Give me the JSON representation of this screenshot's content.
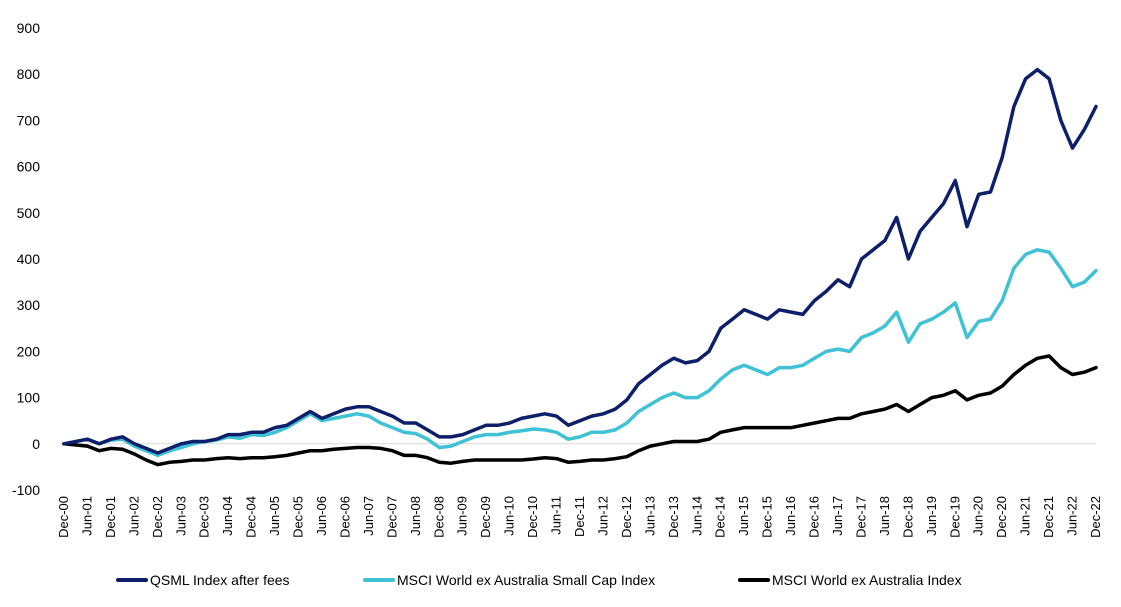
{
  "chart_data": {
    "type": "line",
    "title": "",
    "xlabel": "",
    "ylabel": "",
    "ylim": [
      -100,
      900
    ],
    "yticks": [
      900,
      800,
      700,
      600,
      500,
      400,
      300,
      200,
      100,
      0,
      -100
    ],
    "xticks": [
      "Dec-00",
      "Jun-01",
      "Dec-01",
      "Jun-02",
      "Dec-02",
      "Jun-03",
      "Dec-03",
      "Jun-04",
      "Dec-04",
      "Jun-05",
      "Dec-05",
      "Jun-06",
      "Dec-06",
      "Jun-07",
      "Dec-07",
      "Jun-08",
      "Dec-08",
      "Jun-09",
      "Dec-09",
      "Jun-10",
      "Dec-10",
      "Jun-11",
      "Dec-11",
      "Jun-12",
      "Dec-12",
      "Jun-13",
      "Dec-13",
      "Jun-14",
      "Dec-14",
      "Jun-15",
      "Dec-15",
      "Jun-16",
      "Dec-16",
      "Jun-17",
      "Dec-17",
      "Jun-18",
      "Dec-18",
      "Jun-19",
      "Dec-19",
      "Jun-20",
      "Dec-20",
      "Jun-21",
      "Dec-21",
      "Jun-22",
      "Dec-22"
    ],
    "grid": false,
    "legend_position": "bottom",
    "series": [
      {
        "name": "QSML Index after fees",
        "color": "#0d1f6b",
        "points": [
          [
            "Dec-00",
            0
          ],
          [
            "Jun-01",
            10
          ],
          [
            "Sep-01",
            0
          ],
          [
            "Dec-01",
            10
          ],
          [
            "Mar-02",
            15
          ],
          [
            "Jun-02",
            0
          ],
          [
            "Sep-02",
            -10
          ],
          [
            "Dec-02",
            -20
          ],
          [
            "Mar-03",
            -10
          ],
          [
            "Jun-03",
            0
          ],
          [
            "Sep-03",
            5
          ],
          [
            "Dec-03",
            5
          ],
          [
            "Mar-04",
            10
          ],
          [
            "Jun-04",
            20
          ],
          [
            "Sep-04",
            20
          ],
          [
            "Dec-04",
            25
          ],
          [
            "Mar-05",
            25
          ],
          [
            "Jun-05",
            35
          ],
          [
            "Sep-05",
            40
          ],
          [
            "Dec-05",
            55
          ],
          [
            "Mar-06",
            70
          ],
          [
            "Jun-06",
            55
          ],
          [
            "Sep-06",
            65
          ],
          [
            "Dec-06",
            75
          ],
          [
            "Mar-07",
            80
          ],
          [
            "Jun-07",
            80
          ],
          [
            "Sep-07",
            70
          ],
          [
            "Dec-07",
            60
          ],
          [
            "Mar-08",
            45
          ],
          [
            "Jun-08",
            45
          ],
          [
            "Sep-08",
            30
          ],
          [
            "Dec-08",
            15
          ],
          [
            "Mar-09",
            15
          ],
          [
            "Jun-09",
            20
          ],
          [
            "Sep-09",
            30
          ],
          [
            "Dec-09",
            40
          ],
          [
            "Mar-10",
            40
          ],
          [
            "Jun-10",
            45
          ],
          [
            "Sep-10",
            55
          ],
          [
            "Dec-10",
            60
          ],
          [
            "Mar-11",
            65
          ],
          [
            "Jun-11",
            60
          ],
          [
            "Sep-11",
            40
          ],
          [
            "Dec-11",
            50
          ],
          [
            "Mar-12",
            60
          ],
          [
            "Jun-12",
            65
          ],
          [
            "Sep-12",
            75
          ],
          [
            "Dec-12",
            95
          ],
          [
            "Mar-13",
            130
          ],
          [
            "Jun-13",
            150
          ],
          [
            "Sep-13",
            170
          ],
          [
            "Dec-13",
            185
          ],
          [
            "Mar-14",
            175
          ],
          [
            "Jun-14",
            180
          ],
          [
            "Sep-14",
            200
          ],
          [
            "Dec-14",
            250
          ],
          [
            "Mar-15",
            270
          ],
          [
            "Jun-15",
            290
          ],
          [
            "Sep-15",
            280
          ],
          [
            "Dec-15",
            270
          ],
          [
            "Mar-16",
            290
          ],
          [
            "Jun-16",
            285
          ],
          [
            "Sep-16",
            280
          ],
          [
            "Dec-16",
            310
          ],
          [
            "Mar-17",
            330
          ],
          [
            "Jun-17",
            355
          ],
          [
            "Sep-17",
            340
          ],
          [
            "Dec-17",
            400
          ],
          [
            "Mar-18",
            420
          ],
          [
            "Jun-18",
            440
          ],
          [
            "Sep-18",
            490
          ],
          [
            "Dec-18",
            400
          ],
          [
            "Mar-19",
            460
          ],
          [
            "Jun-19",
            490
          ],
          [
            "Sep-19",
            520
          ],
          [
            "Dec-19",
            570
          ],
          [
            "Mar-20",
            470
          ],
          [
            "Jun-20",
            540
          ],
          [
            "Sep-20",
            545
          ],
          [
            "Dec-20",
            620
          ],
          [
            "Mar-21",
            730
          ],
          [
            "Jun-21",
            790
          ],
          [
            "Sep-21",
            810
          ],
          [
            "Dec-21",
            790
          ],
          [
            "Mar-22",
            700
          ],
          [
            "Jun-22",
            640
          ],
          [
            "Sep-22",
            680
          ],
          [
            "Dec-22",
            730
          ]
        ]
      },
      {
        "name": "MSCI World ex Australia Small Cap Index",
        "color": "#3fc1d6",
        "points": [
          [
            "Dec-00",
            0
          ],
          [
            "Jun-01",
            10
          ],
          [
            "Sep-01",
            0
          ],
          [
            "Dec-01",
            8
          ],
          [
            "Mar-02",
            10
          ],
          [
            "Jun-02",
            -5
          ],
          [
            "Sep-02",
            -15
          ],
          [
            "Dec-02",
            -25
          ],
          [
            "Mar-03",
            -15
          ],
          [
            "Jun-03",
            -8
          ],
          [
            "Sep-03",
            0
          ],
          [
            "Dec-03",
            5
          ],
          [
            "Mar-04",
            8
          ],
          [
            "Jun-04",
            15
          ],
          [
            "Sep-04",
            12
          ],
          [
            "Dec-04",
            20
          ],
          [
            "Mar-05",
            18
          ],
          [
            "Jun-05",
            25
          ],
          [
            "Sep-05",
            35
          ],
          [
            "Dec-05",
            50
          ],
          [
            "Mar-06",
            65
          ],
          [
            "Jun-06",
            50
          ],
          [
            "Sep-06",
            55
          ],
          [
            "Dec-06",
            60
          ],
          [
            "Mar-07",
            65
          ],
          [
            "Jun-07",
            60
          ],
          [
            "Sep-07",
            45
          ],
          [
            "Dec-07",
            35
          ],
          [
            "Mar-08",
            25
          ],
          [
            "Jun-08",
            22
          ],
          [
            "Sep-08",
            10
          ],
          [
            "Dec-08",
            -8
          ],
          [
            "Mar-09",
            -5
          ],
          [
            "Jun-09",
            5
          ],
          [
            "Sep-09",
            15
          ],
          [
            "Dec-09",
            20
          ],
          [
            "Mar-10",
            20
          ],
          [
            "Jun-10",
            25
          ],
          [
            "Sep-10",
            28
          ],
          [
            "Dec-10",
            32
          ],
          [
            "Mar-11",
            30
          ],
          [
            "Jun-11",
            25
          ],
          [
            "Sep-11",
            10
          ],
          [
            "Dec-11",
            15
          ],
          [
            "Mar-12",
            25
          ],
          [
            "Jun-12",
            25
          ],
          [
            "Sep-12",
            30
          ],
          [
            "Dec-12",
            45
          ],
          [
            "Mar-13",
            70
          ],
          [
            "Jun-13",
            85
          ],
          [
            "Sep-13",
            100
          ],
          [
            "Dec-13",
            110
          ],
          [
            "Mar-14",
            100
          ],
          [
            "Jun-14",
            100
          ],
          [
            "Sep-14",
            115
          ],
          [
            "Dec-14",
            140
          ],
          [
            "Mar-15",
            160
          ],
          [
            "Jun-15",
            170
          ],
          [
            "Sep-15",
            160
          ],
          [
            "Dec-15",
            150
          ],
          [
            "Mar-16",
            165
          ],
          [
            "Jun-16",
            165
          ],
          [
            "Sep-16",
            170
          ],
          [
            "Dec-16",
            185
          ],
          [
            "Mar-17",
            200
          ],
          [
            "Jun-17",
            205
          ],
          [
            "Sep-17",
            200
          ],
          [
            "Dec-17",
            230
          ],
          [
            "Mar-18",
            240
          ],
          [
            "Jun-18",
            255
          ],
          [
            "Sep-18",
            285
          ],
          [
            "Dec-18",
            220
          ],
          [
            "Mar-19",
            260
          ],
          [
            "Jun-19",
            270
          ],
          [
            "Sep-19",
            285
          ],
          [
            "Dec-19",
            305
          ],
          [
            "Mar-20",
            230
          ],
          [
            "Jun-20",
            265
          ],
          [
            "Sep-20",
            270
          ],
          [
            "Dec-20",
            310
          ],
          [
            "Mar-21",
            380
          ],
          [
            "Jun-21",
            410
          ],
          [
            "Sep-21",
            420
          ],
          [
            "Dec-21",
            415
          ],
          [
            "Mar-22",
            380
          ],
          [
            "Jun-22",
            340
          ],
          [
            "Sep-22",
            350
          ],
          [
            "Dec-22",
            375
          ]
        ]
      },
      {
        "name": "MSCI World ex Australia Index",
        "color": "#000000",
        "points": [
          [
            "Dec-00",
            0
          ],
          [
            "Jun-01",
            -5
          ],
          [
            "Sep-01",
            -15
          ],
          [
            "Dec-01",
            -10
          ],
          [
            "Mar-02",
            -12
          ],
          [
            "Jun-02",
            -22
          ],
          [
            "Sep-02",
            -35
          ],
          [
            "Dec-02",
            -45
          ],
          [
            "Mar-03",
            -40
          ],
          [
            "Jun-03",
            -38
          ],
          [
            "Sep-03",
            -35
          ],
          [
            "Dec-03",
            -35
          ],
          [
            "Mar-04",
            -32
          ],
          [
            "Jun-04",
            -30
          ],
          [
            "Sep-04",
            -32
          ],
          [
            "Dec-04",
            -30
          ],
          [
            "Mar-05",
            -30
          ],
          [
            "Jun-05",
            -28
          ],
          [
            "Sep-05",
            -25
          ],
          [
            "Dec-05",
            -20
          ],
          [
            "Mar-06",
            -15
          ],
          [
            "Jun-06",
            -15
          ],
          [
            "Sep-06",
            -12
          ],
          [
            "Dec-06",
            -10
          ],
          [
            "Mar-07",
            -8
          ],
          [
            "Jun-07",
            -8
          ],
          [
            "Sep-07",
            -10
          ],
          [
            "Dec-07",
            -15
          ],
          [
            "Mar-08",
            -25
          ],
          [
            "Jun-08",
            -25
          ],
          [
            "Sep-08",
            -30
          ],
          [
            "Dec-08",
            -40
          ],
          [
            "Mar-09",
            -42
          ],
          [
            "Jun-09",
            -38
          ],
          [
            "Sep-09",
            -35
          ],
          [
            "Dec-09",
            -35
          ],
          [
            "Mar-10",
            -35
          ],
          [
            "Jun-10",
            -35
          ],
          [
            "Sep-10",
            -35
          ],
          [
            "Dec-10",
            -33
          ],
          [
            "Mar-11",
            -30
          ],
          [
            "Jun-11",
            -32
          ],
          [
            "Sep-11",
            -40
          ],
          [
            "Dec-11",
            -38
          ],
          [
            "Mar-12",
            -35
          ],
          [
            "Jun-12",
            -35
          ],
          [
            "Sep-12",
            -32
          ],
          [
            "Dec-12",
            -28
          ],
          [
            "Mar-13",
            -15
          ],
          [
            "Jun-13",
            -5
          ],
          [
            "Sep-13",
            0
          ],
          [
            "Dec-13",
            5
          ],
          [
            "Mar-14",
            5
          ],
          [
            "Jun-14",
            5
          ],
          [
            "Sep-14",
            10
          ],
          [
            "Dec-14",
            25
          ],
          [
            "Mar-15",
            30
          ],
          [
            "Jun-15",
            35
          ],
          [
            "Sep-15",
            35
          ],
          [
            "Dec-15",
            35
          ],
          [
            "Mar-16",
            35
          ],
          [
            "Jun-16",
            35
          ],
          [
            "Sep-16",
            40
          ],
          [
            "Dec-16",
            45
          ],
          [
            "Mar-17",
            50
          ],
          [
            "Jun-17",
            55
          ],
          [
            "Sep-17",
            55
          ],
          [
            "Dec-17",
            65
          ],
          [
            "Mar-18",
            70
          ],
          [
            "Jun-18",
            75
          ],
          [
            "Sep-18",
            85
          ],
          [
            "Dec-18",
            70
          ],
          [
            "Mar-19",
            85
          ],
          [
            "Jun-19",
            100
          ],
          [
            "Sep-19",
            105
          ],
          [
            "Dec-19",
            115
          ],
          [
            "Mar-20",
            95
          ],
          [
            "Jun-20",
            105
          ],
          [
            "Sep-20",
            110
          ],
          [
            "Dec-20",
            125
          ],
          [
            "Mar-21",
            150
          ],
          [
            "Jun-21",
            170
          ],
          [
            "Sep-21",
            185
          ],
          [
            "Dec-21",
            190
          ],
          [
            "Mar-22",
            165
          ],
          [
            "Jun-22",
            150
          ],
          [
            "Sep-22",
            155
          ],
          [
            "Dec-22",
            165
          ]
        ]
      }
    ]
  }
}
